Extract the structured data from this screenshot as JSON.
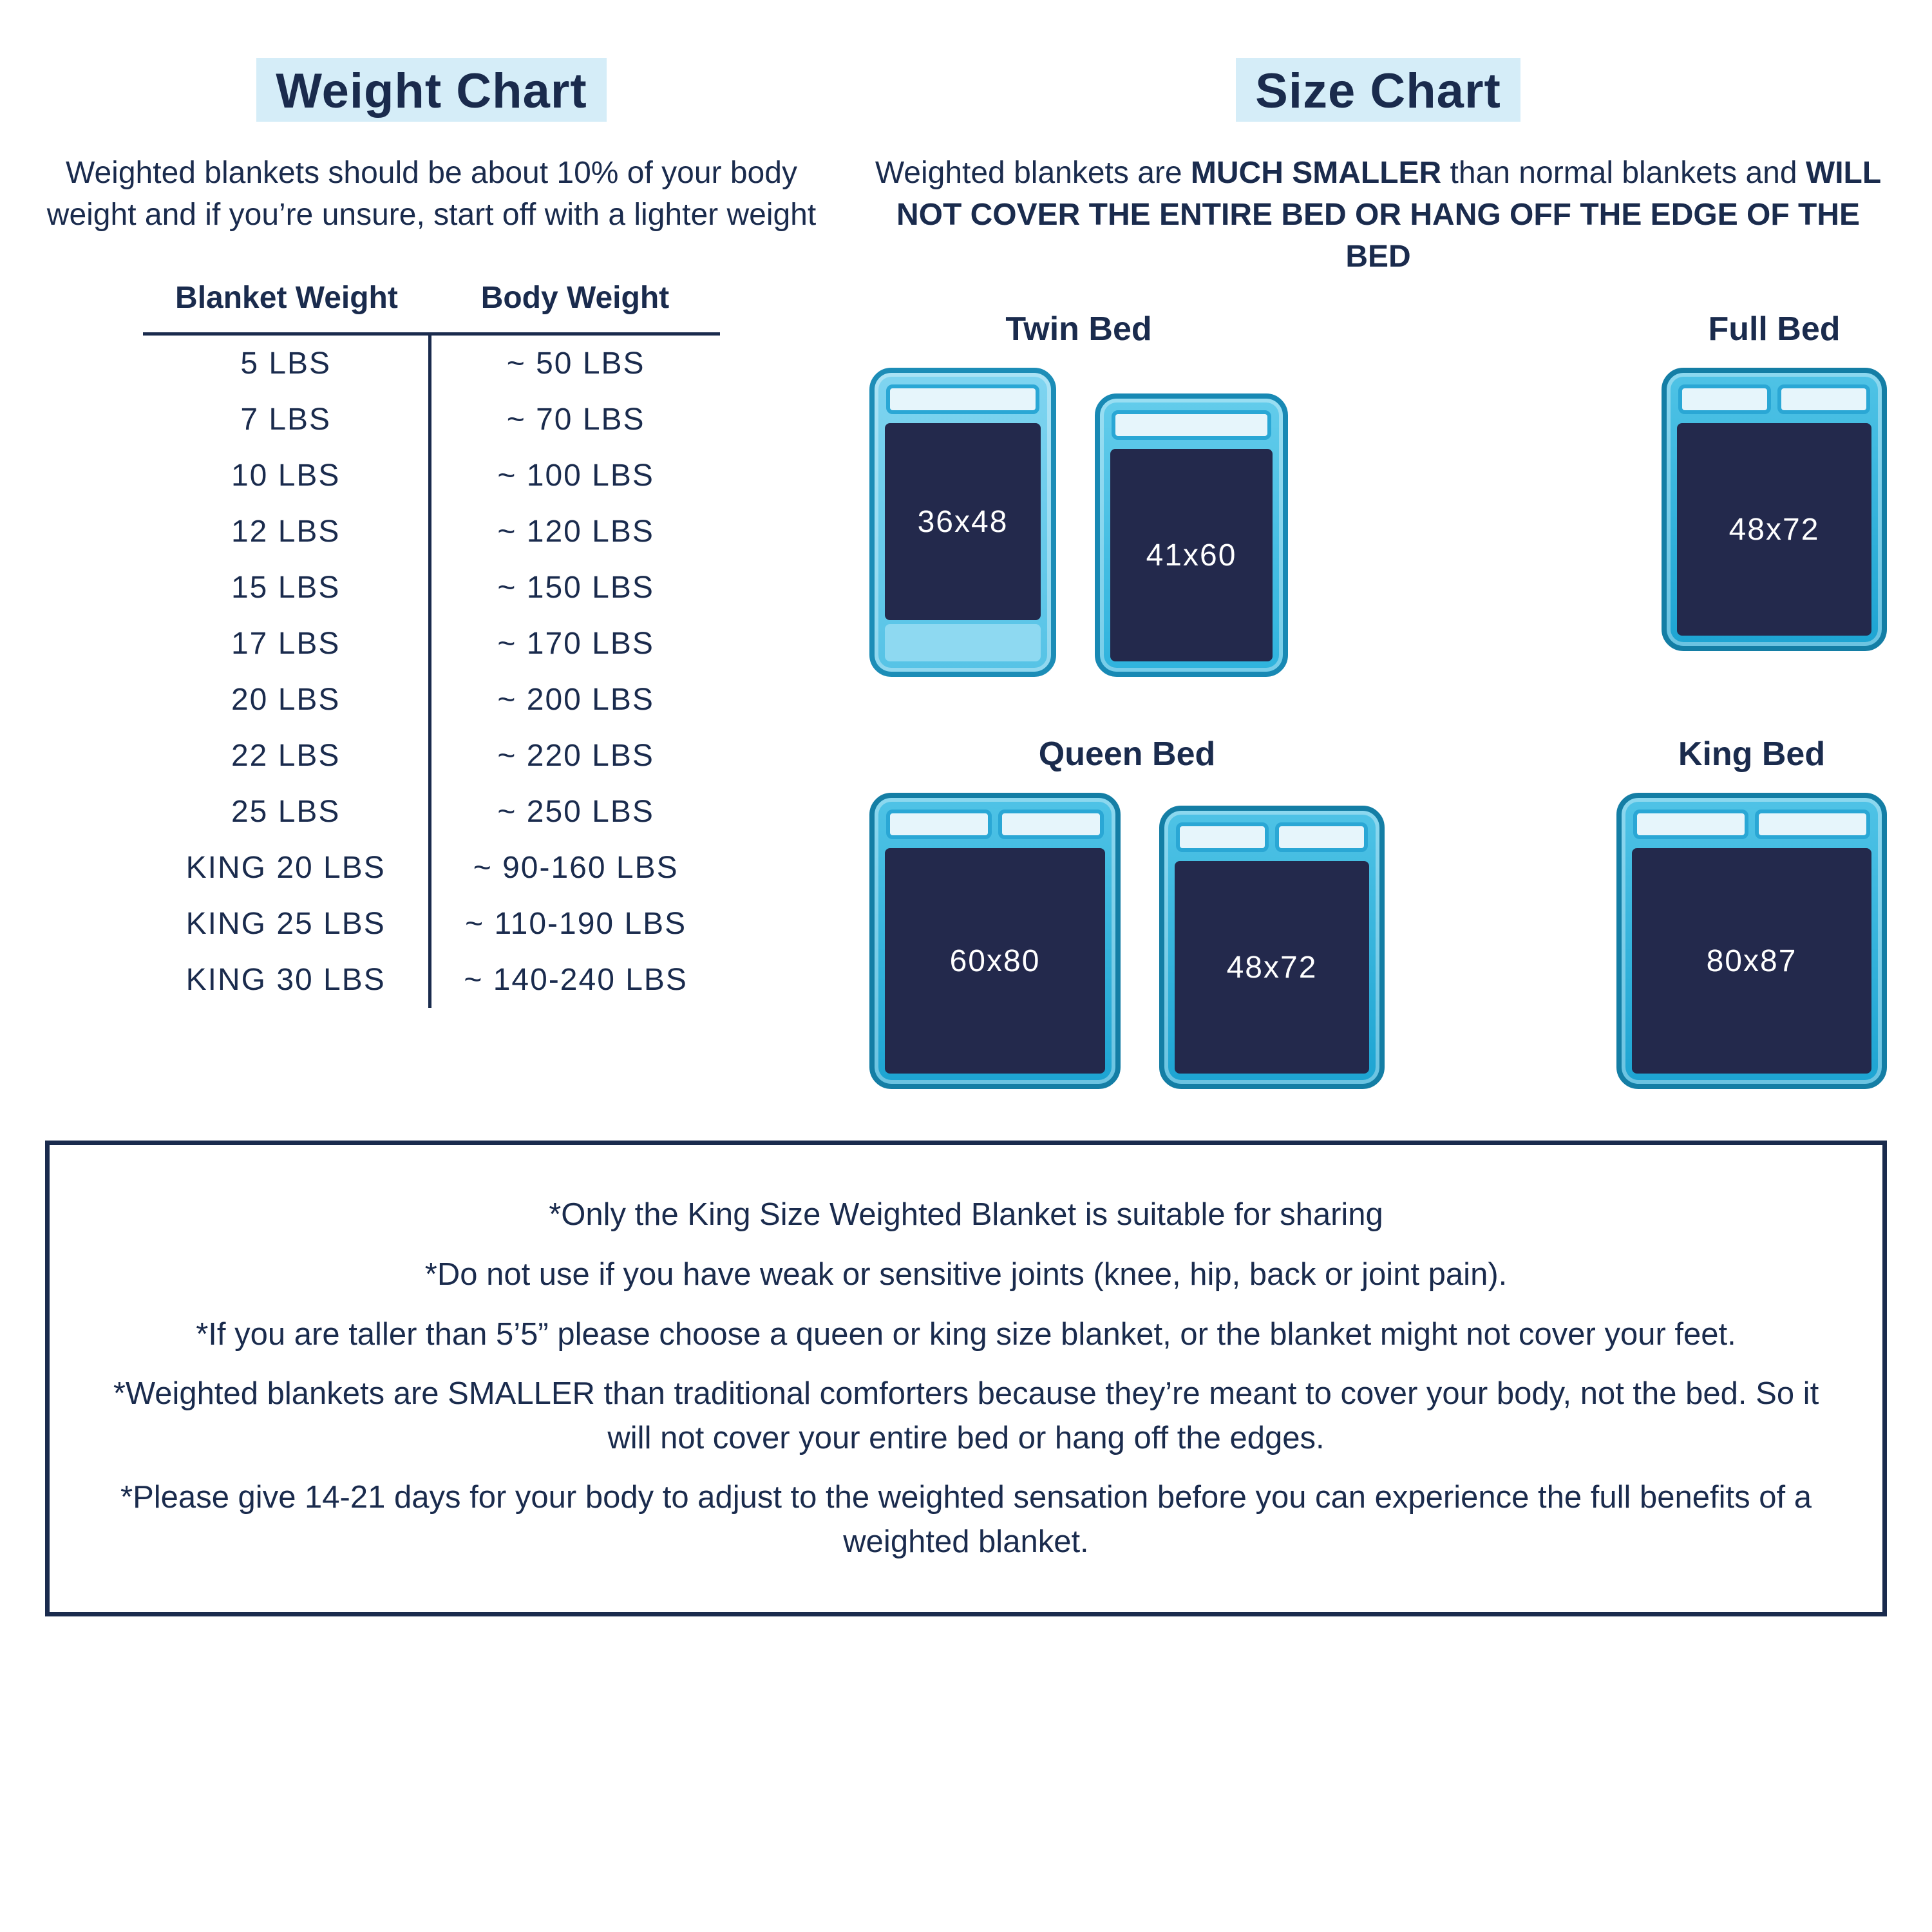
{
  "colors": {
    "text": "#1a2b4d",
    "highlight_bg": "#d5edf8",
    "bed_border_light": "#1c8db7",
    "bed_border_mid": "#1889b4",
    "bed_border_dark": "#147ea5",
    "blanket_fill": "#23294c",
    "pillow_fill": "#e6f5fb",
    "pillow_border": "#2aa7d5"
  },
  "weight": {
    "title": "Weight Chart",
    "subtext": "Weighted blankets should be about 10% of your body weight and if you’re unsure, start off with a lighter weight",
    "columns": [
      "Blanket Weight",
      "Body Weight"
    ],
    "rows": [
      [
        "5 LBS",
        "~ 50 LBS"
      ],
      [
        "7 LBS",
        "~ 70 LBS"
      ],
      [
        "10 LBS",
        "~ 100 LBS"
      ],
      [
        "12 LBS",
        "~ 120 LBS"
      ],
      [
        "15 LBS",
        "~ 150 LBS"
      ],
      [
        "17 LBS",
        "~ 170 LBS"
      ],
      [
        "20 LBS",
        "~ 200 LBS"
      ],
      [
        "22 LBS",
        "~ 220 LBS"
      ],
      [
        "25 LBS",
        "~ 250 LBS"
      ],
      [
        "KING 20 LBS",
        "~ 90-160 LBS"
      ],
      [
        "KING 25 LBS",
        "~ 110-190 LBS"
      ],
      [
        "KING 30 LBS",
        "~ 140-240 LBS"
      ]
    ]
  },
  "size": {
    "title": "Size Chart",
    "subtext_parts": {
      "a": "Weighted blankets are ",
      "b": "MUCH SMALLER",
      "c": " than normal blankets and ",
      "d": "WILL NOT COVER THE ENTIRE BED OR HANG OFF THE EDGE OF THE BED"
    },
    "groups": [
      {
        "name": "Twin Bed",
        "beds": [
          {
            "cls": "twin1",
            "pillows": 1,
            "dim": "36x48"
          },
          {
            "cls": "twin2",
            "pillows": 1,
            "dim": "41x60"
          }
        ]
      },
      {
        "name": "Full Bed",
        "beds": [
          {
            "cls": "full",
            "pillows": 2,
            "dim": "48x72"
          }
        ]
      },
      {
        "name": "Queen Bed",
        "beds": [
          {
            "cls": "queen1",
            "pillows": 2,
            "dim": "60x80"
          },
          {
            "cls": "queen2",
            "pillows": 2,
            "dim": "48x72"
          }
        ]
      },
      {
        "name": "King Bed",
        "beds": [
          {
            "cls": "king",
            "pillows": 2,
            "dim": "80x87"
          }
        ]
      }
    ],
    "row_split": [
      2,
      2
    ]
  },
  "notes": [
    "*Only the King Size Weighted Blanket is suitable for sharing",
    "*Do not use if you have weak or sensitive joints (knee, hip, back or joint pain).",
    "*If you are taller than 5’5” please choose a queen or king size blanket, or the blanket might not cover your feet.",
    "*Weighted blankets are SMALLER than traditional comforters because they’re meant to cover your body, not the bed. So it will not cover your entire bed or hang off the edges.",
    "*Please give 14-21 days for your body to adjust to the weighted sensation before you can experience the full benefits of a weighted blanket."
  ]
}
